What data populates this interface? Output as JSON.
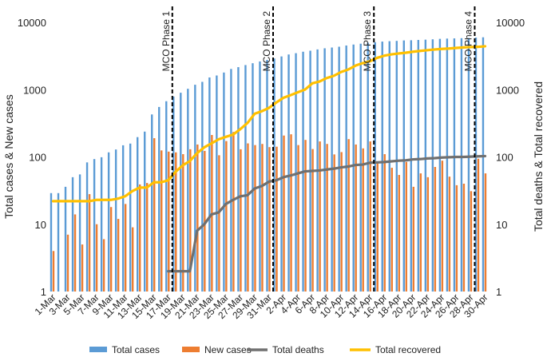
{
  "chart_data": {
    "type": "bar",
    "scale": "log",
    "ylim_left": [
      1,
      10000
    ],
    "ylim_right": [
      1,
      10000
    ],
    "ylabel_left": "Total cases & New cases",
    "ylabel_right": "Total deaths & Total recovered",
    "y_ticks": [
      "1",
      "10",
      "100",
      "1000",
      "10000"
    ],
    "categories": [
      "1-Mar",
      "2-Mar",
      "3-Mar",
      "4-Mar",
      "5-Mar",
      "6-Mar",
      "7-Mar",
      "8-Mar",
      "9-Mar",
      "10-Mar",
      "11-Mar",
      "12-Mar",
      "13-Mar",
      "14-Mar",
      "15-Mar",
      "16-Mar",
      "17-Mar",
      "18-Mar",
      "19-Mar",
      "20-Mar",
      "21-Mar",
      "22-Mar",
      "23-Mar",
      "24-Mar",
      "25-Mar",
      "26-Mar",
      "27-Mar",
      "28-Mar",
      "29-Mar",
      "30-Mar",
      "31-Mar",
      "1-Apr",
      "2-Apr",
      "3-Apr",
      "4-Apr",
      "5-Apr",
      "6-Apr",
      "7-Apr",
      "8-Apr",
      "9-Apr",
      "10-Apr",
      "11-Apr",
      "12-Apr",
      "13-Apr",
      "14-Apr",
      "15-Apr",
      "16-Apr",
      "17-Apr",
      "18-Apr",
      "19-Apr",
      "20-Apr",
      "21-Apr",
      "22-Apr",
      "23-Apr",
      "24-Apr",
      "25-Apr",
      "26-Apr",
      "27-Apr",
      "28-Apr",
      "29-Apr",
      "30-Apr"
    ],
    "x_tick_labels": [
      "1-Mar",
      "3-Mar",
      "5-Mar",
      "7-Mar",
      "9-Mar",
      "11-Mar",
      "13-Mar",
      "15-Mar",
      "17-Mar",
      "19-Mar",
      "21-Mar",
      "23-Mar",
      "25-Mar",
      "27-Mar",
      "29-Mar",
      "31-Mar",
      "2-Apr",
      "4-Apr",
      "6-Apr",
      "8-Apr",
      "10-Apr",
      "12-Apr",
      "14-Apr",
      "16-Apr",
      "18-Apr",
      "20-Apr",
      "22-Apr",
      "24-Apr",
      "26-Apr",
      "28-Apr",
      "30-Apr"
    ],
    "series": [
      {
        "name": "Total cases",
        "kind": "bar",
        "axis": "left",
        "color": "#5B9BD5",
        "values": [
          29,
          29,
          36,
          50,
          55,
          83,
          93,
          99,
          117,
          129,
          149,
          158,
          197,
          238,
          428,
          553,
          673,
          790,
          900,
          1030,
          1183,
          1306,
          1518,
          1624,
          1796,
          2031,
          2161,
          2320,
          2470,
          2626,
          2766,
          2908,
          3116,
          3333,
          3483,
          3662,
          3793,
          3963,
          4119,
          4228,
          4346,
          4530,
          4683,
          4817,
          4987,
          5072,
          5182,
          5251,
          5305,
          5389,
          5425,
          5482,
          5532,
          5603,
          5691,
          5742,
          5780,
          5820,
          5851,
          5945,
          6002
        ]
      },
      {
        "name": "New cases",
        "kind": "bar",
        "axis": "left",
        "color": "#ED7D31",
        "values": [
          4,
          null,
          7,
          14,
          5,
          28,
          10,
          6,
          18,
          12,
          20,
          9,
          39,
          41,
          190,
          125,
          120,
          117,
          110,
          130,
          153,
          123,
          212,
          106,
          172,
          235,
          130,
          159,
          150,
          156,
          140,
          142,
          208,
          217,
          150,
          179,
          131,
          170,
          156,
          109,
          118,
          184,
          153,
          134,
          170,
          85,
          110,
          69,
          54,
          84,
          36,
          57,
          50,
          71,
          88,
          51,
          38,
          40,
          31,
          94,
          57
        ]
      },
      {
        "name": "Total deaths",
        "kind": "line",
        "axis": "right",
        "color": "#707070",
        "values": [
          null,
          null,
          null,
          null,
          null,
          null,
          null,
          null,
          null,
          null,
          null,
          null,
          null,
          null,
          null,
          null,
          2,
          2,
          2,
          2,
          8,
          10,
          14,
          15,
          20,
          23,
          26,
          27,
          34,
          37,
          43,
          45,
          50,
          53,
          57,
          61,
          62,
          63,
          65,
          67,
          70,
          72,
          76,
          77,
          82,
          83,
          84,
          86,
          88,
          89,
          92,
          93,
          95,
          96,
          98,
          99,
          100,
          100,
          101,
          102,
          103
        ]
      },
      {
        "name": "Total recovered",
        "kind": "line",
        "axis": "right",
        "color": "#FFC000",
        "values": [
          22,
          22,
          22,
          22,
          22,
          22,
          23,
          23,
          23,
          24,
          26,
          31,
          35,
          35,
          42,
          42,
          45,
          60,
          75,
          87,
          114,
          139,
          159,
          183,
          199,
          215,
          259,
          320,
          439,
          479,
          537,
          645,
          758,
          830,
          915,
          1005,
          1241,
          1321,
          1487,
          1608,
          1830,
          1995,
          2276,
          2478,
          2647,
          2967,
          3197,
          3349,
          3452,
          3542,
          3663,
          3762,
          3862,
          3957,
          4032,
          4087,
          4171,
          4242,
          4291,
          4326,
          4413
        ]
      }
    ],
    "annotations": [
      {
        "label": "MCO Phase 1",
        "at": "18-Mar"
      },
      {
        "label": "MCO Phase 2",
        "at": "1-Apr"
      },
      {
        "label": "MCO Phase 3",
        "at": "15-Apr"
      },
      {
        "label": "MCO Phase 4",
        "at": "29-Apr"
      }
    ],
    "legend_position": "bottom"
  }
}
